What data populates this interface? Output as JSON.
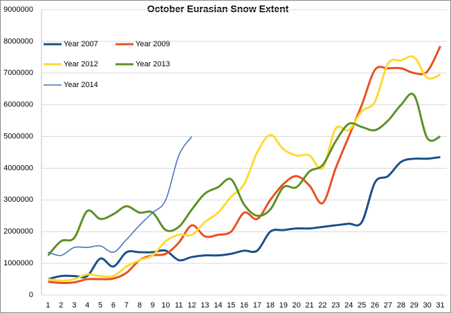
{
  "chart_data": {
    "type": "line",
    "title": "October Eurasian Snow Extent",
    "categories": [
      "1",
      "2",
      "3",
      "4",
      "5",
      "6",
      "7",
      "8",
      "9",
      "10",
      "11",
      "12",
      "13",
      "14",
      "15",
      "16",
      "17",
      "18",
      "19",
      "20",
      "21",
      "22",
      "23",
      "24",
      "25",
      "26",
      "27",
      "28",
      "29",
      "30",
      "31"
    ],
    "ylim": [
      0,
      9000000
    ],
    "yticks": [
      0,
      1000000,
      2000000,
      3000000,
      4000000,
      5000000,
      6000000,
      7000000,
      8000000,
      9000000
    ],
    "grid": true,
    "series": [
      {
        "name": "Year 2007",
        "color": "#1a4f8a",
        "values": [
          500000,
          600000,
          600000,
          600000,
          1150000,
          900000,
          1350000,
          1350000,
          1350000,
          1400000,
          1100000,
          1200000,
          1250000,
          1250000,
          1300000,
          1400000,
          1400000,
          2000000,
          2050000,
          2100000,
          2100000,
          2150000,
          2200000,
          2250000,
          2300000,
          3550000,
          3750000,
          4200000,
          4300000,
          4300000,
          4350000
        ]
      },
      {
        "name": "Year 2009",
        "color": "#e8501f",
        "values": [
          420000,
          380000,
          400000,
          500000,
          500000,
          520000,
          700000,
          1100000,
          1250000,
          1300000,
          1650000,
          2200000,
          1850000,
          1900000,
          2000000,
          2600000,
          2400000,
          3000000,
          3500000,
          3750000,
          3450000,
          2900000,
          4000000,
          5000000,
          6000000,
          7100000,
          7150000,
          7150000,
          7000000,
          7050000,
          7850000
        ]
      },
      {
        "name": "Year 2012",
        "color": "#ffd932",
        "values": [
          500000,
          450000,
          500000,
          650000,
          600000,
          600000,
          900000,
          1100000,
          1250000,
          1700000,
          1900000,
          1900000,
          2300000,
          2600000,
          3100000,
          3500000,
          4500000,
          5050000,
          4600000,
          4400000,
          4400000,
          4000000,
          5250000,
          5200000,
          5800000,
          6100000,
          7300000,
          7400000,
          7500000,
          6850000,
          6950000
        ]
      },
      {
        "name": "Year 2013",
        "color": "#5a9126",
        "values": [
          1250000,
          1700000,
          1800000,
          2650000,
          2400000,
          2550000,
          2800000,
          2600000,
          2600000,
          2050000,
          2150000,
          2700000,
          3200000,
          3400000,
          3650000,
          2850000,
          2500000,
          2700000,
          3400000,
          3400000,
          3900000,
          4100000,
          4850000,
          5400000,
          5300000,
          5200000,
          5500000,
          6000000,
          6300000,
          4950000,
          5000000
        ]
      },
      {
        "name": "Year 2014",
        "color": "#4a74b5",
        "values": [
          1350000,
          1250000,
          1500000,
          1500000,
          1550000,
          1350000,
          1750000,
          2200000,
          2600000,
          3000000,
          4400000,
          5000000,
          null,
          null,
          null,
          null,
          null,
          null,
          null,
          null,
          null,
          null,
          null,
          null,
          null,
          null,
          null,
          null,
          null,
          null,
          null
        ]
      }
    ]
  }
}
